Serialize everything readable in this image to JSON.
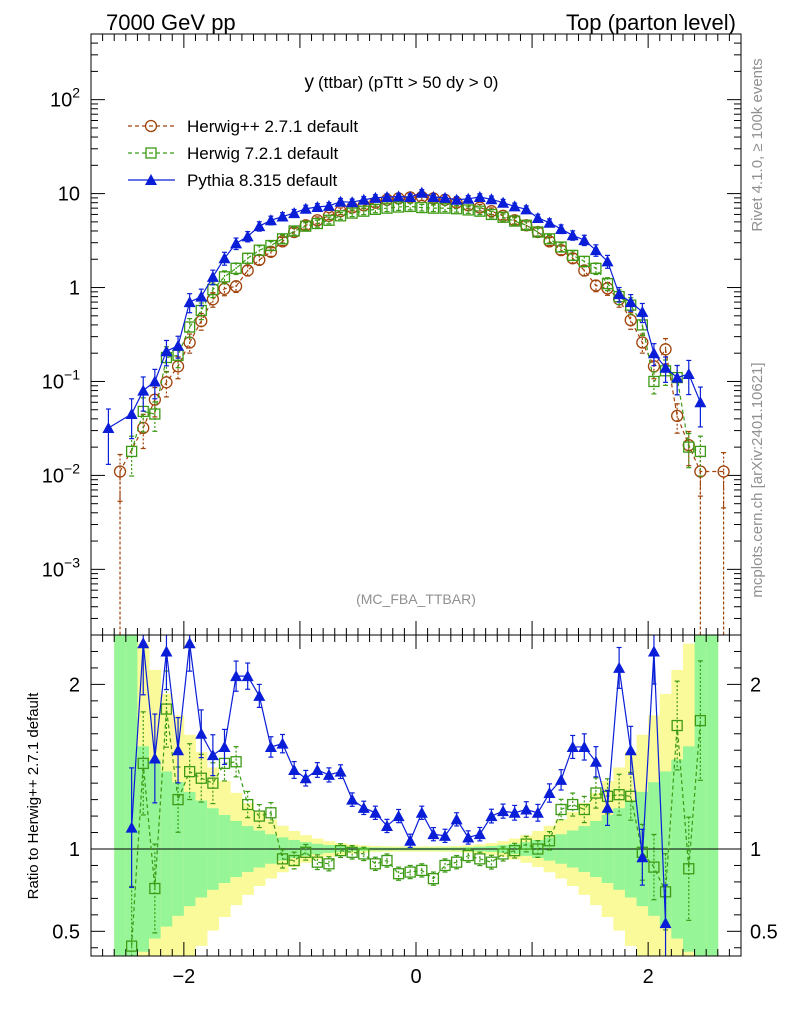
{
  "header": {
    "left": "7000 GeV pp",
    "right": "Top (parton level)"
  },
  "side_labels": {
    "rivet": "Rivet 4.1.0, ≥ 100k events",
    "mcplots": "mcplots.cern.ch [arXiv:2401.10621]"
  },
  "colors": {
    "herwigpp": "#a0420a",
    "herwig7": "#3c9a14",
    "pythia": "#0a1ed8",
    "band_inner": "#96f596",
    "band_outer": "#fafa9b"
  },
  "chart_data": [
    {
      "type": "line",
      "title": "y (ttbar) (pTtt > 50 dy > 0)",
      "title_main": "y",
      "title_sub": "(ttbar) (pTtt > 50 dy > 0)",
      "watermark": "(MC_FBA_TTBAR)",
      "yscale": "log",
      "xlim": [
        -2.8,
        2.8
      ],
      "ylim": [
        0.0002,
        500
      ],
      "y_tick_labels": [
        "10^-3",
        "10^-2",
        "10^-1",
        "1",
        "10",
        "10^2"
      ],
      "legend": [
        {
          "label": "Herwig++ 2.7.1 default",
          "marker": "open-circle",
          "style": "dashed"
        },
        {
          "label": "Herwig 7.2.1 default",
          "marker": "open-square",
          "style": "dashed"
        },
        {
          "label": "Pythia 8.315 default",
          "marker": "filled-triangle",
          "style": "solid"
        }
      ],
      "series": [
        {
          "name": "Herwig++ 2.7.1 default",
          "x": [
            -2.55,
            -2.35,
            -2.25,
            -2.15,
            -2.05,
            -1.95,
            -1.85,
            -1.75,
            -1.65,
            -1.55,
            -1.45,
            -1.35,
            -1.25,
            -1.15,
            -1.05,
            -0.95,
            -0.85,
            -0.75,
            -0.65,
            -0.55,
            -0.45,
            -0.35,
            -0.25,
            -0.15,
            -0.05,
            0.05,
            0.15,
            0.25,
            0.35,
            0.45,
            0.55,
            0.65,
            0.75,
            0.85,
            0.95,
            1.05,
            1.15,
            1.25,
            1.35,
            1.45,
            1.55,
            1.65,
            1.75,
            1.85,
            1.95,
            2.05,
            2.15,
            2.25,
            2.35,
            2.45,
            2.65
          ],
          "y": [
            0.011,
            0.032,
            0.064,
            0.098,
            0.145,
            0.26,
            0.44,
            0.75,
            0.97,
            1.03,
            1.52,
            1.97,
            2.4,
            3.1,
            3.9,
            4.6,
            5.2,
            5.8,
            6.5,
            7.1,
            7.5,
            8.0,
            8.6,
            8.9,
            9.1,
            9.2,
            8.9,
            8.6,
            8.0,
            7.5,
            7.1,
            6.5,
            5.8,
            5.2,
            4.6,
            3.9,
            3.1,
            2.5,
            2.05,
            1.52,
            1.05,
            0.98,
            0.75,
            0.45,
            0.26,
            0.145,
            0.22,
            0.043,
            0.021,
            0.011,
            0.011
          ]
        },
        {
          "name": "Herwig 7.2.1 default",
          "x": [
            -2.45,
            -2.35,
            -2.25,
            -2.15,
            -2.05,
            -1.95,
            -1.85,
            -1.75,
            -1.65,
            -1.55,
            -1.45,
            -1.35,
            -1.25,
            -1.15,
            -1.05,
            -0.95,
            -0.85,
            -0.75,
            -0.65,
            -0.55,
            -0.45,
            -0.35,
            -0.25,
            -0.15,
            -0.05,
            0.05,
            0.15,
            0.25,
            0.35,
            0.45,
            0.55,
            0.65,
            0.75,
            0.85,
            0.95,
            1.05,
            1.15,
            1.25,
            1.35,
            1.45,
            1.55,
            1.65,
            1.75,
            1.85,
            1.95,
            2.05,
            2.15,
            2.25,
            2.35,
            2.45
          ],
          "y": [
            0.018,
            0.048,
            0.045,
            0.18,
            0.19,
            0.38,
            0.57,
            0.95,
            1.3,
            1.6,
            2.05,
            2.5,
            2.8,
            3.3,
            4.0,
            4.5,
            4.8,
            5.2,
            5.8,
            6.2,
            6.5,
            6.8,
            7.0,
            7.2,
            7.3,
            7.1,
            7.0,
            7.0,
            6.9,
            6.7,
            6.5,
            6.0,
            5.6,
            5.1,
            4.6,
            3.9,
            3.3,
            2.7,
            2.2,
            1.9,
            1.6,
            1.1,
            0.8,
            0.65,
            0.4,
            0.1,
            0.13,
            0.11,
            0.02,
            0.018
          ]
        },
        {
          "name": "Pythia 8.315 default",
          "x": [
            -2.65,
            -2.45,
            -2.35,
            -2.25,
            -2.15,
            -2.05,
            -1.95,
            -1.85,
            -1.75,
            -1.65,
            -1.55,
            -1.45,
            -1.35,
            -1.25,
            -1.15,
            -1.05,
            -0.95,
            -0.85,
            -0.75,
            -0.65,
            -0.55,
            -0.45,
            -0.35,
            -0.25,
            -0.15,
            -0.05,
            0.05,
            0.15,
            0.25,
            0.35,
            0.45,
            0.55,
            0.65,
            0.75,
            0.85,
            0.95,
            1.05,
            1.15,
            1.25,
            1.35,
            1.45,
            1.55,
            1.65,
            1.75,
            1.85,
            1.95,
            2.05,
            2.15,
            2.25,
            2.35,
            2.45
          ],
          "y": [
            0.032,
            0.045,
            0.08,
            0.1,
            0.21,
            0.24,
            0.7,
            0.8,
            1.3,
            2.05,
            2.95,
            3.5,
            4.5,
            5.2,
            5.7,
            6.2,
            6.9,
            7.2,
            7.4,
            8.2,
            8.1,
            8.6,
            9.0,
            9.2,
            9.3,
            9.2,
            10.2,
            9.2,
            9.0,
            8.6,
            8.8,
            9.2,
            8.7,
            8.0,
            7.3,
            6.8,
            5.5,
            4.9,
            4.2,
            3.6,
            3.2,
            2.5,
            1.9,
            0.85,
            0.7,
            0.55,
            0.2,
            0.14,
            0.11,
            0.12,
            0.06
          ]
        }
      ]
    },
    {
      "type": "line",
      "ylabel": "Ratio to Herwig++ 2.7.1 default",
      "xlim": [
        -2.8,
        2.8
      ],
      "ylim": [
        0.35,
        2.3
      ],
      "x_tick_labels": [
        "−2",
        "0",
        "2"
      ],
      "y_tick_labels": [
        "0.5",
        "1",
        "2"
      ],
      "series": [
        {
          "name": "Herwig 7.2.1 default",
          "x": [
            -2.45,
            -2.35,
            -2.25,
            -2.15,
            -2.05,
            -1.95,
            -1.85,
            -1.75,
            -1.65,
            -1.55,
            -1.45,
            -1.35,
            -1.25,
            -1.15,
            -1.05,
            -0.95,
            -0.85,
            -0.75,
            -0.65,
            -0.55,
            -0.45,
            -0.35,
            -0.25,
            -0.15,
            -0.05,
            0.05,
            0.15,
            0.25,
            0.35,
            0.45,
            0.55,
            0.65,
            0.75,
            0.85,
            0.95,
            1.05,
            1.15,
            1.25,
            1.35,
            1.45,
            1.55,
            1.65,
            1.75,
            1.85,
            1.95,
            2.05,
            2.15,
            2.25,
            2.35,
            2.45
          ],
          "y": [
            0.41,
            1.52,
            0.76,
            1.85,
            1.3,
            1.47,
            1.43,
            1.4,
            1.52,
            1.53,
            1.27,
            1.2,
            1.22,
            0.94,
            0.93,
            0.98,
            0.92,
            0.91,
            0.99,
            0.98,
            0.97,
            0.91,
            0.93,
            0.85,
            0.86,
            0.87,
            0.82,
            0.9,
            0.92,
            0.96,
            0.94,
            0.92,
            0.97,
            0.99,
            1.03,
            1.0,
            1.05,
            1.24,
            1.27,
            1.24,
            1.34,
            1.32,
            1.33,
            1.32,
            0.98,
            0.89,
            0.74,
            1.75,
            0.88,
            1.78
          ]
        },
        {
          "name": "Pythia 8.315 default",
          "x": [
            -2.45,
            -2.35,
            -2.25,
            -2.15,
            -2.05,
            -1.95,
            -1.85,
            -1.75,
            -1.65,
            -1.55,
            -1.45,
            -1.35,
            -1.25,
            -1.15,
            -1.05,
            -0.95,
            -0.85,
            -0.75,
            -0.65,
            -0.55,
            -0.45,
            -0.35,
            -0.25,
            -0.15,
            -0.05,
            0.05,
            0.15,
            0.25,
            0.35,
            0.45,
            0.55,
            0.65,
            0.75,
            0.85,
            0.95,
            1.05,
            1.15,
            1.25,
            1.35,
            1.45,
            1.55,
            1.65,
            1.75,
            1.85,
            1.95,
            2.05,
            2.15
          ],
          "y": [
            1.13,
            2.25,
            1.55,
            2.2,
            1.6,
            2.25,
            1.7,
            1.57,
            1.62,
            2.05,
            2.05,
            1.93,
            1.62,
            1.64,
            1.48,
            1.43,
            1.48,
            1.45,
            1.47,
            1.3,
            1.25,
            1.22,
            1.14,
            1.2,
            1.05,
            1.22,
            1.09,
            1.08,
            1.18,
            1.07,
            1.09,
            1.2,
            1.23,
            1.22,
            1.24,
            1.22,
            1.34,
            1.42,
            1.62,
            1.62,
            1.53,
            1.25,
            2.1,
            1.6,
            0.95,
            2.2,
            0.55
          ]
        }
      ]
    }
  ]
}
